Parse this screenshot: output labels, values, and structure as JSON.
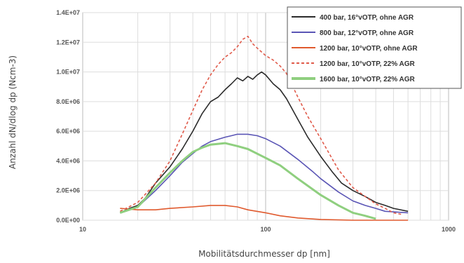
{
  "chart_data": {
    "type": "line",
    "title": "",
    "xlabel": "Mobilitätsdurchmesser dp [nm]",
    "ylabel": "Anzahl dN/dlog dp (Ncm-3)",
    "xscale": "log",
    "xlim": [
      10,
      1000
    ],
    "ylim": [
      0,
      14000000
    ],
    "x_ticks": [
      {
        "value": 10,
        "label": "10"
      },
      {
        "value": 100,
        "label": "100"
      },
      {
        "value": 1000,
        "label": "1000"
      }
    ],
    "y_ticks": [
      {
        "value": 0,
        "label": "0.0E+00"
      },
      {
        "value": 2000000,
        "label": "2.0E+06"
      },
      {
        "value": 4000000,
        "label": "4.0E+06"
      },
      {
        "value": 6000000,
        "label": "6.0E+06"
      },
      {
        "value": 8000000,
        "label": "8.0E+06"
      },
      {
        "value": 10000000,
        "label": "1.0E+07"
      },
      {
        "value": 12000000,
        "label": "1.2E+07"
      },
      {
        "value": 14000000,
        "label": "1.4E+07"
      }
    ],
    "grid": true,
    "legend_position": "top-right",
    "series": [
      {
        "name": "400 bar, 16°vOTP, ohne AGR",
        "color": "#2b2b2b",
        "style": "solid",
        "points": [
          [
            16,
            500000
          ],
          [
            18,
            800000
          ],
          [
            20,
            1000000
          ],
          [
            22,
            1500000
          ],
          [
            25,
            2500000
          ],
          [
            30,
            3600000
          ],
          [
            35,
            4800000
          ],
          [
            40,
            6000000
          ],
          [
            45,
            7200000
          ],
          [
            50,
            8000000
          ],
          [
            55,
            8300000
          ],
          [
            60,
            8800000
          ],
          [
            65,
            9200000
          ],
          [
            70,
            9600000
          ],
          [
            75,
            9400000
          ],
          [
            80,
            9700000
          ],
          [
            85,
            9500000
          ],
          [
            90,
            9800000
          ],
          [
            95,
            10000000
          ],
          [
            100,
            9800000
          ],
          [
            110,
            9200000
          ],
          [
            120,
            8800000
          ],
          [
            130,
            8200000
          ],
          [
            150,
            6800000
          ],
          [
            170,
            5600000
          ],
          [
            200,
            4300000
          ],
          [
            230,
            3300000
          ],
          [
            260,
            2500000
          ],
          [
            300,
            2000000
          ],
          [
            350,
            1600000
          ],
          [
            400,
            1200000
          ],
          [
            450,
            1000000
          ],
          [
            500,
            800000
          ],
          [
            600,
            600000
          ]
        ]
      },
      {
        "name": "800 bar, 12°vOTP, ohne AGR",
        "color": "#5a55b5",
        "style": "solid",
        "points": [
          [
            16,
            500000
          ],
          [
            20,
            900000
          ],
          [
            25,
            2000000
          ],
          [
            30,
            3000000
          ],
          [
            35,
            3900000
          ],
          [
            40,
            4500000
          ],
          [
            45,
            5000000
          ],
          [
            50,
            5300000
          ],
          [
            60,
            5600000
          ],
          [
            65,
            5700000
          ],
          [
            70,
            5800000
          ],
          [
            80,
            5800000
          ],
          [
            90,
            5700000
          ],
          [
            100,
            5500000
          ],
          [
            120,
            5000000
          ],
          [
            150,
            4100000
          ],
          [
            180,
            3300000
          ],
          [
            200,
            2800000
          ],
          [
            250,
            1900000
          ],
          [
            300,
            1300000
          ],
          [
            350,
            1000000
          ],
          [
            400,
            800000
          ],
          [
            450,
            600000
          ],
          [
            600,
            500000
          ]
        ]
      },
      {
        "name": "1200 bar, 10°vOTP, ohne AGR",
        "color": "#e05a2e",
        "style": "solid",
        "points": [
          [
            16,
            800000
          ],
          [
            20,
            700000
          ],
          [
            25,
            700000
          ],
          [
            30,
            800000
          ],
          [
            40,
            900000
          ],
          [
            50,
            1000000
          ],
          [
            60,
            1000000
          ],
          [
            70,
            900000
          ],
          [
            80,
            700000
          ],
          [
            100,
            500000
          ],
          [
            120,
            300000
          ],
          [
            150,
            150000
          ],
          [
            200,
            50000
          ],
          [
            300,
            0
          ],
          [
            600,
            0
          ]
        ]
      },
      {
        "name": "1200 bar, 10°vOTP, 22% AGR",
        "color": "#e05a4a",
        "style": "dashed",
        "points": [
          [
            16,
            600000
          ],
          [
            20,
            1200000
          ],
          [
            25,
            2500000
          ],
          [
            30,
            4000000
          ],
          [
            35,
            5800000
          ],
          [
            40,
            7400000
          ],
          [
            45,
            8800000
          ],
          [
            50,
            9800000
          ],
          [
            55,
            10500000
          ],
          [
            60,
            11000000
          ],
          [
            65,
            11300000
          ],
          [
            70,
            11700000
          ],
          [
            75,
            12200000
          ],
          [
            80,
            12400000
          ],
          [
            85,
            11900000
          ],
          [
            90,
            11600000
          ],
          [
            100,
            11100000
          ],
          [
            110,
            10800000
          ],
          [
            120,
            10400000
          ],
          [
            130,
            9900000
          ],
          [
            150,
            8300000
          ],
          [
            170,
            7000000
          ],
          [
            200,
            5500000
          ],
          [
            250,
            3400000
          ],
          [
            300,
            2200000
          ],
          [
            350,
            1600000
          ],
          [
            400,
            1100000
          ],
          [
            450,
            800000
          ],
          [
            500,
            500000
          ],
          [
            550,
            400000
          ]
        ]
      },
      {
        "name": "1600 bar, 10°vOTP, 22% AGR",
        "color": "#8fcf7f",
        "style": "solid",
        "points": [
          [
            16,
            500000
          ],
          [
            20,
            900000
          ],
          [
            25,
            2200000
          ],
          [
            30,
            3200000
          ],
          [
            35,
            4000000
          ],
          [
            40,
            4600000
          ],
          [
            45,
            4900000
          ],
          [
            50,
            5100000
          ],
          [
            60,
            5200000
          ],
          [
            70,
            5000000
          ],
          [
            80,
            4800000
          ],
          [
            100,
            4200000
          ],
          [
            120,
            3700000
          ],
          [
            150,
            2800000
          ],
          [
            200,
            1700000
          ],
          [
            250,
            1000000
          ],
          [
            300,
            500000
          ],
          [
            350,
            300000
          ],
          [
            400,
            100000
          ]
        ]
      }
    ]
  }
}
